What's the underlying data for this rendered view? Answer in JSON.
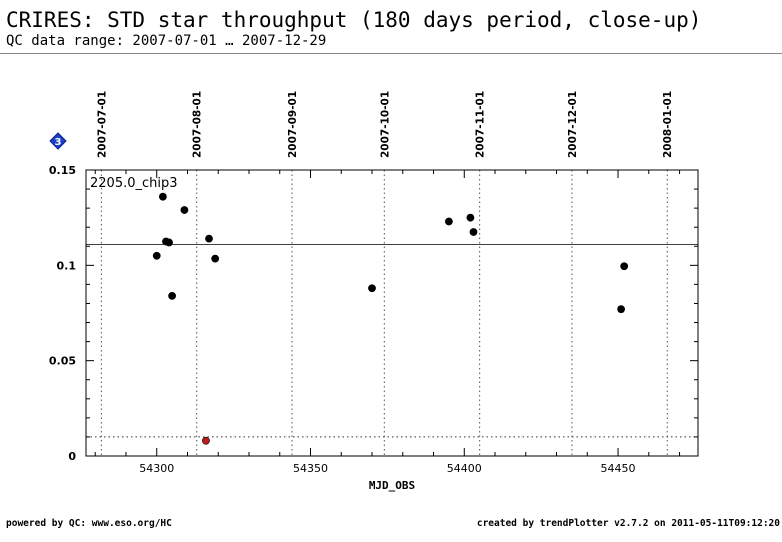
{
  "header": {
    "title": "CRIRES: STD star throughput (180 days period, close-up)",
    "subtitle": "QC data range: 2007-07-01 … 2007-12-29"
  },
  "badge": {
    "label": "3",
    "icon": "diamond-marker-icon",
    "color": "#1e40c8"
  },
  "footer": {
    "left": "powered by QC: www.eso.org/HC",
    "right": "created by trendPlotter v2.7.2 on 2011-05-11T09:12:20"
  },
  "chart_data": {
    "type": "scatter",
    "panel_label": "2205.0_chip3",
    "xlabel": "MJD_OBS",
    "ylabel": "",
    "xlim": [
      54277,
      54476
    ],
    "ylim": [
      0,
      0.15
    ],
    "x_ticks": [
      54300,
      54350,
      54400,
      54450
    ],
    "y_ticks": [
      0,
      0.05,
      0.1,
      0.15
    ],
    "y_tick_labels": [
      "0",
      "0.05",
      "0.1",
      "0.15"
    ],
    "date_ticks": [
      {
        "label": "2007-07-01",
        "mjd": 54282
      },
      {
        "label": "2007-08-01",
        "mjd": 54313
      },
      {
        "label": "2007-09-01",
        "mjd": 54344
      },
      {
        "label": "2007-10-01",
        "mjd": 54374
      },
      {
        "label": "2007-11-01",
        "mjd": 54405
      },
      {
        "label": "2007-12-01",
        "mjd": 54435
      },
      {
        "label": "2008-01-01",
        "mjd": 54466
      }
    ],
    "reference_line": 0.111,
    "lower_threshold": 0.01,
    "series": [
      {
        "color": "#000000",
        "points": [
          {
            "x": 54302,
            "y": 0.136
          },
          {
            "x": 54309,
            "y": 0.129
          },
          {
            "x": 54303,
            "y": 0.1125
          },
          {
            "x": 54304,
            "y": 0.112
          },
          {
            "x": 54317,
            "y": 0.114
          },
          {
            "x": 54300,
            "y": 0.105
          },
          {
            "x": 54319,
            "y": 0.1035
          },
          {
            "x": 54305,
            "y": 0.084
          },
          {
            "x": 54370,
            "y": 0.088
          },
          {
            "x": 54395,
            "y": 0.123
          },
          {
            "x": 54402,
            "y": 0.125
          },
          {
            "x": 54403,
            "y": 0.1175
          },
          {
            "x": 54452,
            "y": 0.0995
          },
          {
            "x": 54451,
            "y": 0.077
          }
        ]
      },
      {
        "color": "#c01818",
        "points": [
          {
            "x": 54316,
            "y": 0.008
          }
        ]
      }
    ]
  }
}
